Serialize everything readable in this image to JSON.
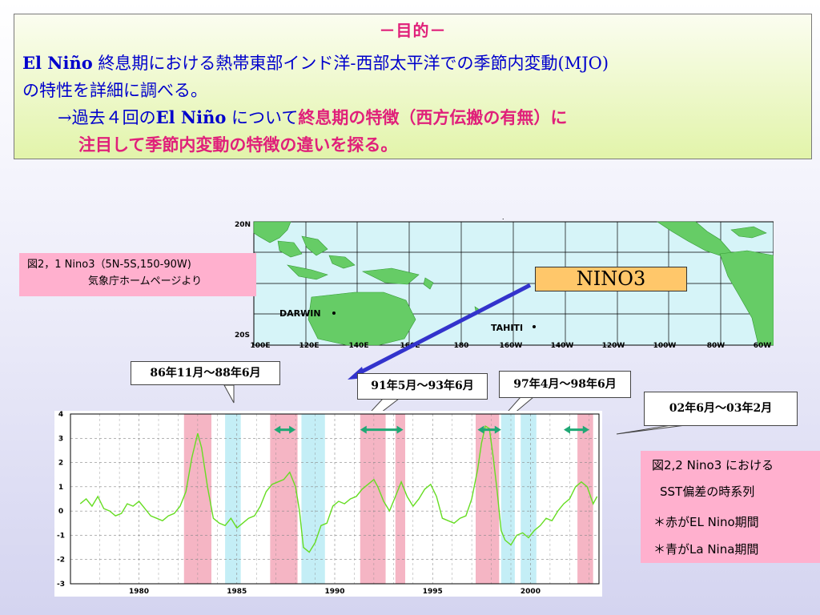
{
  "objective": {
    "title": "－目的－",
    "line1_en": "El Niño",
    "line1_jp": " 終息期における熱帯東部インド洋-西部太平洋での季節内変動(MJO)",
    "line2": "の特性を詳細に調べる。",
    "line3_prefix": "→過去４回の",
    "line3_en": "El Niño",
    "line3_mid": " について",
    "line3_highlight": "終息期の特徴（西方伝搬の有無）に",
    "line4_highlight": "注目して季節内変動の特徴の違いを探る。"
  },
  "map": {
    "lat_labels": [
      "20N",
      "20S"
    ],
    "lon_labels": [
      "100E",
      "120E",
      "140E",
      "160E",
      "180",
      "160W",
      "140W",
      "120W",
      "100W",
      "80W",
      "60W"
    ],
    "stations": [
      "DARWIN",
      "TAHITI"
    ],
    "region_label": "NINO3",
    "caption_line1": "図2，1  Nino3（5N-5S,150-90W)",
    "caption_line2": "気象庁ホームページより"
  },
  "callouts": {
    "c86": "86年11月～88年6月",
    "c91": "91年5月～93年6月",
    "c97": "97年4月～98年6月",
    "c02": "02年6月～03年2月"
  },
  "chart_data": {
    "type": "line",
    "title": "",
    "xlabel": "",
    "ylabel": "",
    "xlim": [
      1976.5,
      2003.5
    ],
    "ylim": [
      -3,
      4
    ],
    "yticks": [
      -3,
      -2,
      -1,
      0,
      1,
      2,
      3,
      4
    ],
    "xticks": [
      1980,
      1985,
      1990,
      1995,
      2000
    ],
    "x_tick_labels": [
      "1980",
      "1985",
      "1990",
      "1995",
      "2000"
    ],
    "grid": true,
    "colors": {
      "el_nino": "#f5b5c4",
      "la_nina": "#c4eef6",
      "line": "#66dd22",
      "arrow": "#1fa875"
    },
    "el_nino_periods": [
      [
        1982.3,
        1983.7
      ],
      [
        1986.7,
        1988.1
      ],
      [
        1991.3,
        1992.6
      ],
      [
        1993.1,
        1993.6
      ],
      [
        1997.2,
        1998.4
      ],
      [
        2002.4,
        2003.2
      ]
    ],
    "la_nina_periods": [
      [
        1984.4,
        1985.2
      ],
      [
        1988.3,
        1989.5
      ],
      [
        1998.5,
        1999.2
      ],
      [
        1999.5,
        2000.3
      ]
    ],
    "highlight_arrows": [
      [
        1986.9,
        1988.0
      ],
      [
        1991.3,
        1993.5
      ],
      [
        1997.3,
        1998.5
      ],
      [
        2001.7,
        2003.0
      ]
    ],
    "series": [
      {
        "x": [
          1977.0,
          1977.3,
          1977.6,
          1977.9,
          1978.2,
          1978.5,
          1978.8,
          1979.1,
          1979.4,
          1979.7,
          1980.0,
          1980.3,
          1980.6,
          1980.9,
          1981.2,
          1981.5,
          1981.8,
          1982.1,
          1982.4,
          1982.7,
          1983.0,
          1983.2,
          1983.5,
          1983.8,
          1984.1,
          1984.4,
          1984.7,
          1985.0,
          1985.3,
          1985.6,
          1985.9,
          1986.2,
          1986.5,
          1986.8,
          1987.1,
          1987.4,
          1987.7,
          1988.0,
          1988.2,
          1988.4,
          1988.7,
          1989.0,
          1989.3,
          1989.6,
          1989.9,
          1990.2,
          1990.5,
          1990.8,
          1991.1,
          1991.4,
          1991.7,
          1992.0,
          1992.2,
          1992.5,
          1992.8,
          1993.1,
          1993.4,
          1993.7,
          1994.0,
          1994.3,
          1994.6,
          1994.9,
          1995.2,
          1995.5,
          1995.8,
          1996.1,
          1996.4,
          1996.7,
          1997.0,
          1997.3,
          1997.5,
          1997.7,
          1997.9,
          1998.1,
          1998.3,
          1998.5,
          1998.7,
          1999.0,
          1999.3,
          1999.6,
          1999.9,
          2000.2,
          2000.5,
          2000.8,
          2001.1,
          2001.4,
          2001.7,
          2002.0,
          2002.3,
          2002.6,
          2002.9,
          2003.2,
          2003.4
        ],
        "values": [
          0.3,
          0.5,
          0.2,
          0.6,
          0.1,
          0.0,
          -0.2,
          -0.1,
          0.3,
          0.2,
          0.4,
          0.1,
          -0.2,
          -0.3,
          -0.4,
          -0.2,
          -0.1,
          0.2,
          0.8,
          2.2,
          3.2,
          2.6,
          1.0,
          -0.3,
          -0.5,
          -0.6,
          -0.3,
          -0.7,
          -0.5,
          -0.3,
          -0.2,
          0.2,
          0.8,
          1.1,
          1.2,
          1.3,
          1.6,
          1.0,
          0.0,
          -1.5,
          -1.7,
          -1.3,
          -0.6,
          -0.5,
          0.2,
          0.4,
          0.3,
          0.5,
          0.6,
          0.9,
          1.1,
          1.3,
          1.0,
          0.4,
          0.0,
          0.6,
          1.2,
          0.6,
          0.2,
          0.5,
          0.9,
          1.1,
          0.6,
          -0.3,
          -0.4,
          -0.5,
          -0.3,
          -0.2,
          0.5,
          1.7,
          2.8,
          3.5,
          3.4,
          2.2,
          0.8,
          -0.8,
          -1.2,
          -1.4,
          -1.0,
          -0.9,
          -1.1,
          -0.8,
          -0.6,
          -0.3,
          -0.4,
          0.0,
          0.3,
          0.5,
          1.0,
          1.2,
          1.0,
          0.3,
          0.6
        ]
      }
    ]
  },
  "fig22": {
    "line1": "図2,2  Nino3 における",
    "line2": "SST偏差の時系列",
    "line3": "＊赤がEL Nino期間",
    "line4": "＊青がLa Nina期間"
  }
}
